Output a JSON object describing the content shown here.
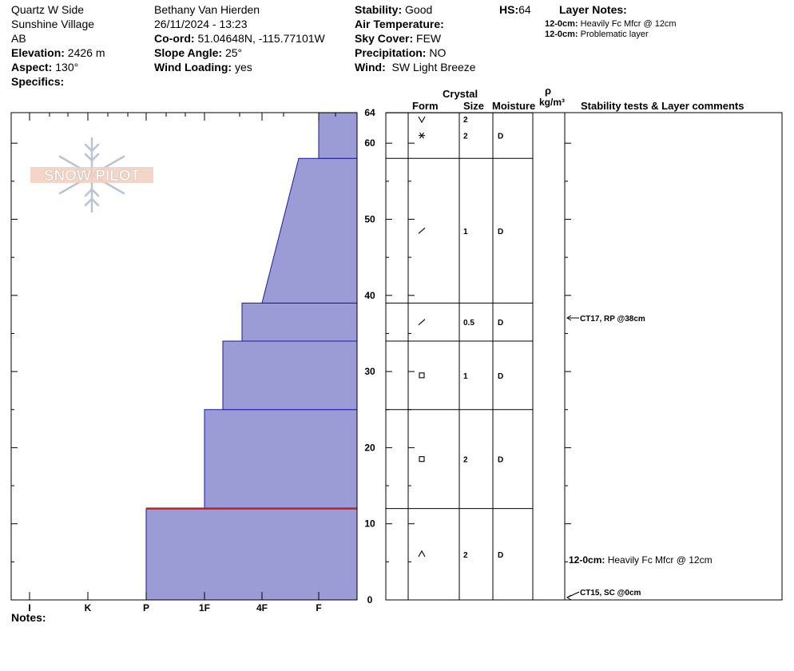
{
  "header": {
    "location": "Quartz W Side",
    "area": "Sunshine Village",
    "region": "AB",
    "elevation_label": "Elevation:",
    "elevation_value": "2426 m",
    "aspect_label": "Aspect:",
    "aspect_value": "130°",
    "specifics_label": "Specifics:",
    "observer": "Bethany Van Hierden",
    "datetime": "26/11/2024 - 13:23",
    "coord_label": "Co-ord:",
    "coord_value": "51.04648N, -115.77101W",
    "slope_label": "Slope Angle:",
    "slope_value": "25°",
    "wind_loading_label": "Wind Loading:",
    "wind_loading_value": "yes",
    "stability_label": "Stability:",
    "stability_value": "Good",
    "air_temp_label": "Air Temperature:",
    "sky_label": "Sky Cover:",
    "sky_value": "FEW",
    "precip_label": "Precipitation:",
    "precip_value": "NO",
    "wind_label": "Wind:",
    "wind_value": "SW Light Breeze",
    "hs_label": "HS:",
    "hs_value": "64",
    "layer_notes_title": "Layer Notes:",
    "layer_notes": [
      {
        "depth": "12-0cm:",
        "text": "Heavily Fc Mfcr @ 12cm"
      },
      {
        "depth": "12-0cm:",
        "text": "Problematic layer"
      }
    ]
  },
  "logo_text": "SNOW PILOT",
  "table_headers": {
    "crystal": "Crystal",
    "form": "Form",
    "size": "Size",
    "moisture": "Moisture",
    "rho": "ρ",
    "density_unit": "kg/m³",
    "comments": "Stability tests & Layer comments"
  },
  "notes_label": "Notes:",
  "colors": {
    "hardness_fill": "#9b9bd6",
    "hardness_stroke": "#1a1aa8",
    "crust_line": "#c0202a",
    "grid": "#000000"
  },
  "chart_data": {
    "type": "snow-profile",
    "y_axis": {
      "unit": "cm",
      "range": [
        0,
        64
      ],
      "ticks": [
        0,
        10,
        20,
        30,
        40,
        50,
        60,
        64
      ]
    },
    "x_axis": {
      "categories": [
        "I",
        "K",
        "P",
        "1F",
        "4F",
        "F"
      ],
      "reversed": true
    },
    "hardness_layers": [
      {
        "bottom": 0,
        "top": 12,
        "hardness_bottom": "P",
        "hardness_top": "P"
      },
      {
        "bottom": 12,
        "top": 25,
        "hardness_bottom": "P+",
        "hardness_top": "P+"
      },
      {
        "bottom": 25,
        "top": 34,
        "hardness_bottom": "1F+",
        "hardness_top": "1F+"
      },
      {
        "bottom": 34,
        "top": 39,
        "hardness_bottom": "1F-",
        "hardness_top": "1F-"
      },
      {
        "bottom": 39,
        "top": 58,
        "hardness_bottom": "4F-",
        "hardness_top": "4F-/F+"
      },
      {
        "bottom": 58,
        "top": 64,
        "hardness_bottom": "F",
        "hardness_top": "F"
      }
    ],
    "crust_depth": 12,
    "layers": [
      {
        "bottom": 64,
        "top": 62,
        "form": "v-symbol",
        "size": "2",
        "moisture": ""
      },
      {
        "bottom": 58,
        "top": 64,
        "form": "star",
        "size": "2",
        "moisture": "D"
      },
      {
        "bottom": 39,
        "top": 58,
        "form": "slash",
        "size": "1",
        "moisture": "D"
      },
      {
        "bottom": 34,
        "top": 39,
        "form": "slash",
        "size": "0.5",
        "moisture": "D"
      },
      {
        "bottom": 25,
        "top": 34,
        "form": "square",
        "size": "1",
        "moisture": "D"
      },
      {
        "bottom": 12,
        "top": 25,
        "form": "square",
        "size": "2",
        "moisture": "D"
      },
      {
        "bottom": 0,
        "top": 12,
        "form": "caret",
        "size": "2",
        "moisture": "D"
      }
    ],
    "stability_tests": [
      {
        "depth": 38,
        "label": "CT17, RP @38cm"
      },
      {
        "depth": 0,
        "label": "CT15, SC @0cm"
      }
    ],
    "layer_comments": [
      {
        "depth_label": "12-0cm:",
        "text": "Heavily Fc Mfcr @ 12cm"
      }
    ]
  }
}
